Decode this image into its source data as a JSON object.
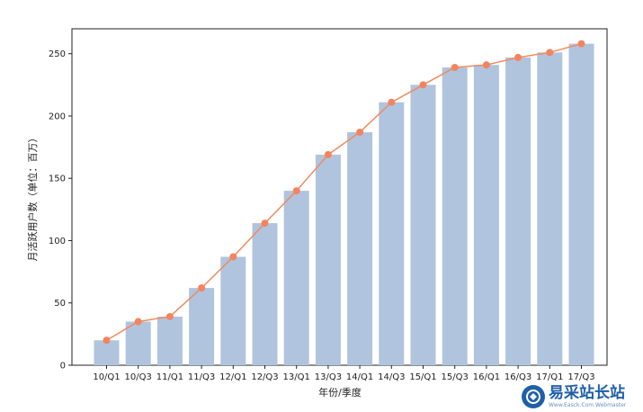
{
  "chart_data": {
    "type": "bar",
    "categories": [
      "10/Q1",
      "10/Q3",
      "11/Q1",
      "11/Q3",
      "12/Q1",
      "12/Q3",
      "13/Q1",
      "13/Q3",
      "14/Q1",
      "14/Q3",
      "15/Q1",
      "15/Q3",
      "16/Q1",
      "16/Q3",
      "17/Q1",
      "17/Q3"
    ],
    "values": [
      20,
      35,
      39,
      62,
      87,
      114,
      140,
      169,
      187,
      211,
      225,
      239,
      241,
      247,
      251,
      258
    ],
    "line_values": [
      20,
      35,
      39,
      62,
      87,
      114,
      140,
      169,
      187,
      211,
      225,
      239,
      241,
      247,
      251,
      258
    ],
    "xlabel": "年份/季度",
    "ylabel": "月活跃用户数（单位：百万）",
    "ylim": [
      0,
      270
    ],
    "yticks": [
      0,
      50,
      100,
      150,
      200,
      250
    ],
    "grid": false,
    "legend": "none",
    "colors": {
      "bar": "#b0c4de",
      "line": "#f08a5d",
      "marker": "#f4845f"
    }
  },
  "watermark": {
    "main_text": "易采站长站",
    "sub_text": "Www.Easck.Com Webmaster",
    "logo_color": "#1f5fa8"
  }
}
